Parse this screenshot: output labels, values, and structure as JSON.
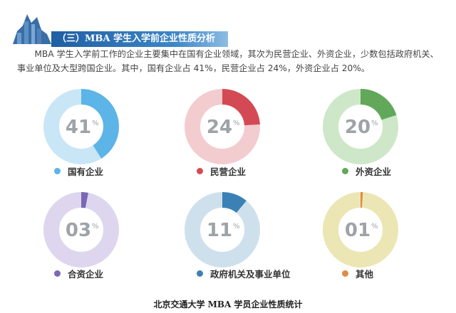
{
  "header": {
    "title": "（三）MBA 学生入学前企业性质分析"
  },
  "intro": "MBA 学生入学前工作的企业主要集中在国有企业领域，其次为民营企业、外资企业，少数包括政府机关、事业单位及大型跨国企业。其中，国有企业占 41%，民营企业占 24%，外资企业占 20%。",
  "caption": "北京交通大学 MBA 学员企业性质统计",
  "watermark": "",
  "chart_data": {
    "type": "pie",
    "variant": "donut-small-multiples",
    "series": [
      {
        "name": "国有企业",
        "value": 41,
        "label": "41",
        "color": "#5db4e6",
        "track": "#c9e6f7"
      },
      {
        "name": "民营企业",
        "value": 24,
        "label": "24",
        "color": "#d44a54",
        "track": "#f3cccf"
      },
      {
        "name": "外资企业",
        "value": 20,
        "label": "20",
        "color": "#62a85a",
        "track": "#cfe7c9"
      },
      {
        "name": "合资企业",
        "value": 3,
        "label": "03",
        "color": "#7a68b5",
        "track": "#ddd6ee"
      },
      {
        "name": "政府机关及事业单位",
        "value": 11,
        "label": "11",
        "color": "#3b81b5",
        "track": "#cfe0ed"
      },
      {
        "name": "其他",
        "value": 1,
        "label": "01",
        "color": "#e08a45",
        "track": "#ebe6b3"
      }
    ],
    "unit": "%"
  }
}
